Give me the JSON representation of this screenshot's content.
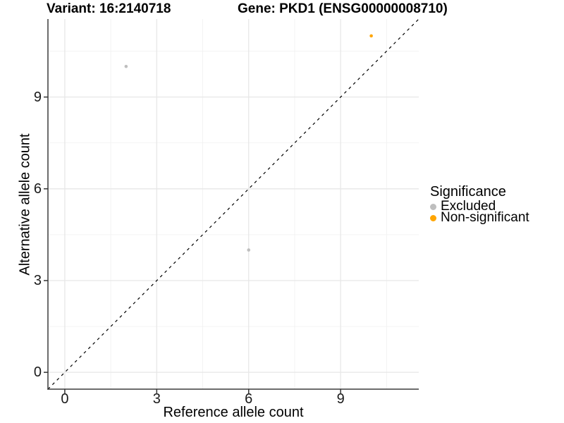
{
  "chart_data": {
    "type": "scatter",
    "titles": {
      "left": "Variant: 16:2140718",
      "right": "Gene: PKD1 (ENSG00000008710)"
    },
    "xlabel": "Reference allele count",
    "ylabel": "Alternative allele count",
    "xlim": [
      -0.55,
      11.55
    ],
    "ylim": [
      -0.55,
      11.55
    ],
    "x_major_ticks": [
      0,
      3,
      6,
      9
    ],
    "y_major_ticks": [
      0,
      3,
      6,
      9
    ],
    "x_minor_ticks": [
      1.5,
      4.5,
      7.5,
      10.5
    ],
    "y_minor_ticks": [
      1.5,
      4.5,
      7.5,
      10.5
    ],
    "grid": "major+minor",
    "identity_line": {
      "style": "dashed",
      "from": [
        -0.55,
        -0.55
      ],
      "to": [
        11.55,
        11.55
      ],
      "color": "#000000"
    },
    "series": [
      {
        "name": "Excluded",
        "color": "#BEBEBE",
        "points": [
          {
            "x": 2,
            "y": 10
          },
          {
            "x": 6,
            "y": 4
          }
        ]
      },
      {
        "name": "Non-significant",
        "color": "#FFA500",
        "points": [
          {
            "x": 10,
            "y": 11
          }
        ]
      }
    ],
    "legend": {
      "title": "Significance",
      "position": "right",
      "entries": [
        {
          "label": "Excluded",
          "color": "#BEBEBE"
        },
        {
          "label": "Non-significant",
          "color": "#FFA500"
        }
      ]
    },
    "style": {
      "background": "#FFFFFF",
      "grid_major_color": "#E7E7E7",
      "grid_minor_color": "#F2F2F2",
      "axis_line_color": "#3C3C3C",
      "tick_color": "#333333",
      "point_radius": 2.3,
      "legend_dot_radius": 4.5
    }
  }
}
